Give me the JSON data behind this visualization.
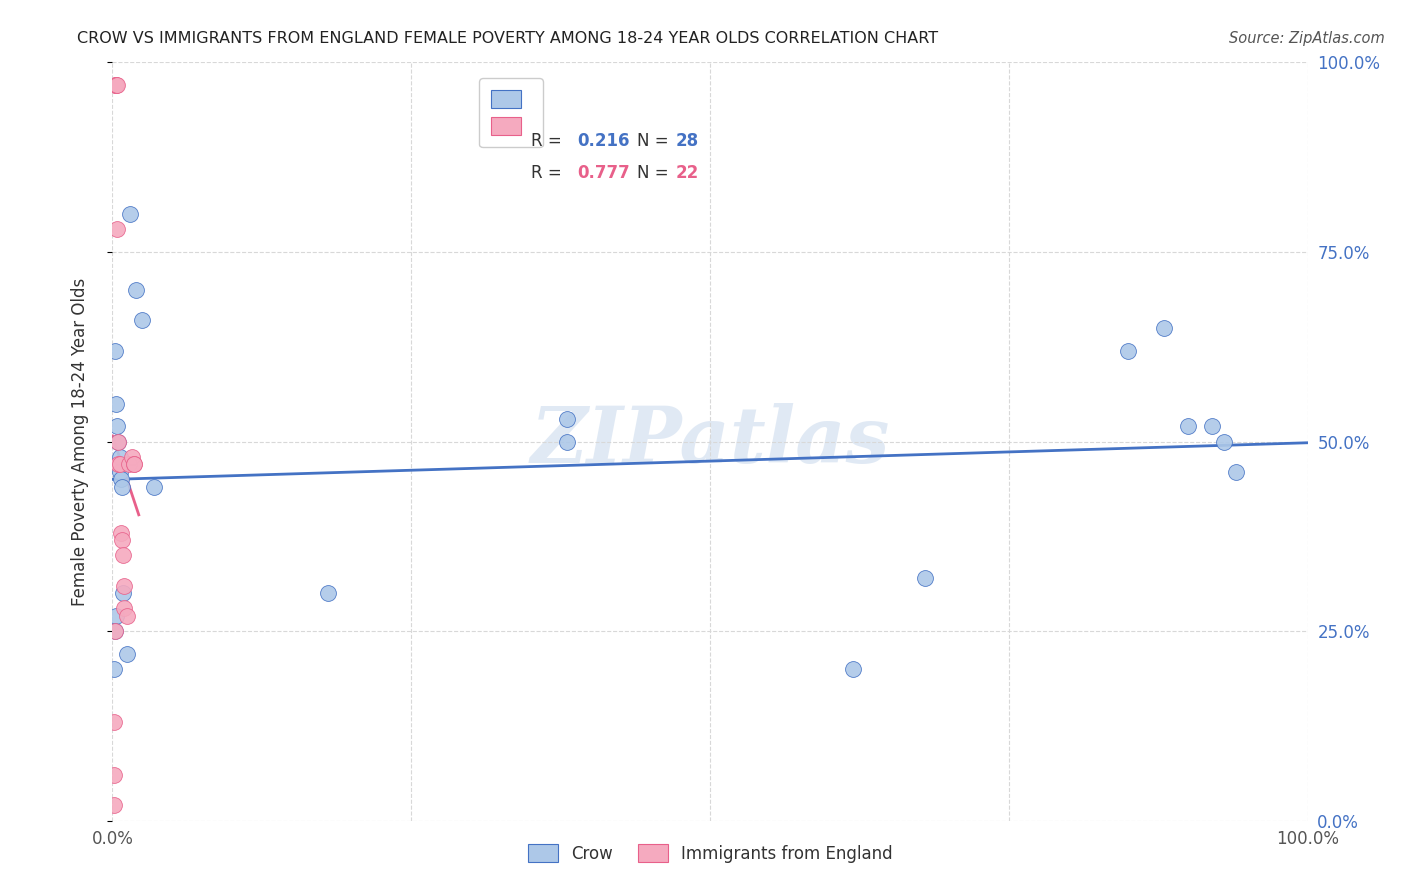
{
  "title": "CROW VS IMMIGRANTS FROM ENGLAND FEMALE POVERTY AMONG 18-24 YEAR OLDS CORRELATION CHART",
  "source": "Source: ZipAtlas.com",
  "ylabel": "Female Poverty Among 18-24 Year Olds",
  "crow_R": 0.216,
  "crow_N": 28,
  "eng_R": 0.777,
  "eng_N": 22,
  "crow_color": "#adc8e8",
  "eng_color": "#f5aabf",
  "crow_line_color": "#4472c4",
  "eng_line_color": "#e8608a",
  "crow_x": [
    0.002,
    0.003,
    0.004,
    0.005,
    0.006,
    0.006,
    0.007,
    0.008,
    0.009,
    0.012,
    0.015,
    0.02,
    0.025,
    0.035,
    0.18,
    0.38,
    0.38,
    0.62,
    0.68,
    0.85,
    0.88,
    0.9,
    0.92,
    0.93,
    0.94,
    0.001,
    0.003,
    0.002
  ],
  "crow_y": [
    0.62,
    0.55,
    0.52,
    0.5,
    0.48,
    0.46,
    0.45,
    0.44,
    0.3,
    0.22,
    0.8,
    0.7,
    0.66,
    0.44,
    0.3,
    0.53,
    0.5,
    0.2,
    0.32,
    0.62,
    0.65,
    0.52,
    0.52,
    0.5,
    0.46,
    0.2,
    0.27,
    0.25
  ],
  "eng_x": [
    0.002,
    0.003,
    0.003,
    0.004,
    0.004,
    0.005,
    0.005,
    0.006,
    0.007,
    0.008,
    0.009,
    0.01,
    0.01,
    0.012,
    0.014,
    0.016,
    0.018,
    0.018,
    0.001,
    0.001,
    0.001,
    0.002
  ],
  "eng_y": [
    0.97,
    0.97,
    0.97,
    0.97,
    0.78,
    0.5,
    0.47,
    0.47,
    0.38,
    0.37,
    0.35,
    0.31,
    0.28,
    0.27,
    0.47,
    0.48,
    0.47,
    0.47,
    0.13,
    0.06,
    0.02,
    0.25
  ],
  "watermark": "ZIPatlas",
  "background_color": "#ffffff",
  "grid_color": "#d8d8d8",
  "xlim": [
    0,
    1
  ],
  "ylim": [
    0,
    1
  ],
  "xtick_positions": [
    0,
    0.25,
    0.5,
    0.75,
    1.0
  ],
  "xticklabels": [
    "0.0%",
    "",
    "",
    "",
    "100.0%"
  ],
  "ytick_positions": [
    0,
    0.25,
    0.5,
    0.75,
    1.0
  ],
  "right_yticklabels": [
    "0.0%",
    "25.0%",
    "50.0%",
    "75.0%",
    "100.0%"
  ]
}
